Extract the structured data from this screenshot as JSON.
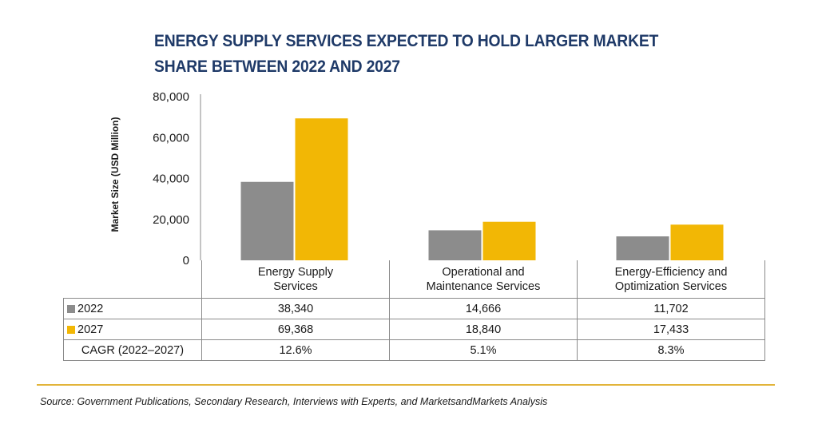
{
  "colors": {
    "series_2022": "#8c8c8c",
    "series_2027": "#f2b705",
    "title": "#1f3a68",
    "rule": "#e2b43a"
  },
  "chart_data": {
    "type": "bar",
    "title": "ENERGY SUPPLY SERVICES EXPECTED TO HOLD LARGER MARKET SHARE BETWEEN 2022 AND 2027",
    "ylabel": "Market Size (USD Million)",
    "xlabel": "",
    "ylim": [
      0,
      80000
    ],
    "yticks": [
      0,
      20000,
      40000,
      60000,
      80000
    ],
    "ytick_labels": [
      "0",
      "20,000",
      "40,000",
      "60,000",
      "80,000"
    ],
    "grid": false,
    "legend": "table-rows",
    "categories": [
      [
        "Energy Supply",
        "Services"
      ],
      [
        "Operational and",
        "Maintenance Services"
      ],
      [
        "Energy-Efficiency and",
        "Optimization Services"
      ]
    ],
    "series": [
      {
        "name": "2022",
        "values": [
          38340,
          14666,
          11702
        ],
        "labels": [
          "38,340",
          "14,666",
          "11,702"
        ]
      },
      {
        "name": "2027",
        "values": [
          69368,
          18840,
          17433
        ],
        "labels": [
          "69,368",
          "18,840",
          "17,433"
        ]
      }
    ],
    "cagr": {
      "label": "CAGR (2022–2027)",
      "values": [
        "12.6%",
        "5.1%",
        "8.3%"
      ]
    }
  },
  "source": "Source: Government Publications, Secondary Research, Interviews with Experts, and MarketsandMarkets Analysis"
}
